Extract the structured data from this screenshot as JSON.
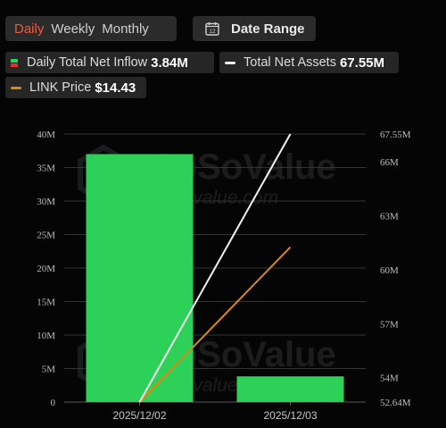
{
  "tabs": {
    "daily": "Daily",
    "weekly": "Weekly",
    "monthly": "Monthly"
  },
  "date_range": {
    "label": "Date Range",
    "icon_text": "12"
  },
  "legend": {
    "inflow": {
      "label": "Daily Total Net Inflow",
      "value": "3.84M"
    },
    "assets": {
      "label": "Total Net Assets",
      "value": "67.55M"
    },
    "price": {
      "label": "LINK Price",
      "value": "$14.43"
    }
  },
  "colors": {
    "bar": "#2ed158",
    "assets_line": "#f2f2f2",
    "price_line": "#d98a12",
    "active_tab": "#ef5a3c",
    "grid": "#333333",
    "swatch_pos": "#2ed158",
    "swatch_neg": "#e0302b"
  },
  "watermark": {
    "brand": "SoSoValue",
    "url": "sosovalue.com"
  },
  "chart_data": {
    "type": "bar",
    "categories": [
      "2025/12/02",
      "2025/12/03"
    ],
    "series": [
      {
        "name": "Daily Total Net Inflow",
        "type": "bar",
        "axis": "left",
        "values": [
          37.0,
          3.84
        ]
      },
      {
        "name": "Total Net Assets",
        "type": "line",
        "axis": "right",
        "values": [
          52.64,
          67.55
        ]
      },
      {
        "name": "LINK Price",
        "type": "line",
        "axis": "hidden",
        "values": [
          13.1,
          14.43
        ]
      }
    ],
    "left_axis": {
      "ticks": [
        "0",
        "5M",
        "10M",
        "15M",
        "20M",
        "25M",
        "30M",
        "35M",
        "40M"
      ],
      "ylim": [
        0,
        40
      ]
    },
    "right_axis": {
      "ticks": [
        "52.64M",
        "54M",
        "57M",
        "60M",
        "63M",
        "66M",
        "67.55M"
      ],
      "tick_values": [
        52.64,
        54,
        57,
        60,
        63,
        66,
        67.55
      ],
      "ylim": [
        52.64,
        67.55
      ]
    },
    "price_range": [
      13.1,
      15.4
    ],
    "grid": true,
    "legend_position": "top-left"
  }
}
